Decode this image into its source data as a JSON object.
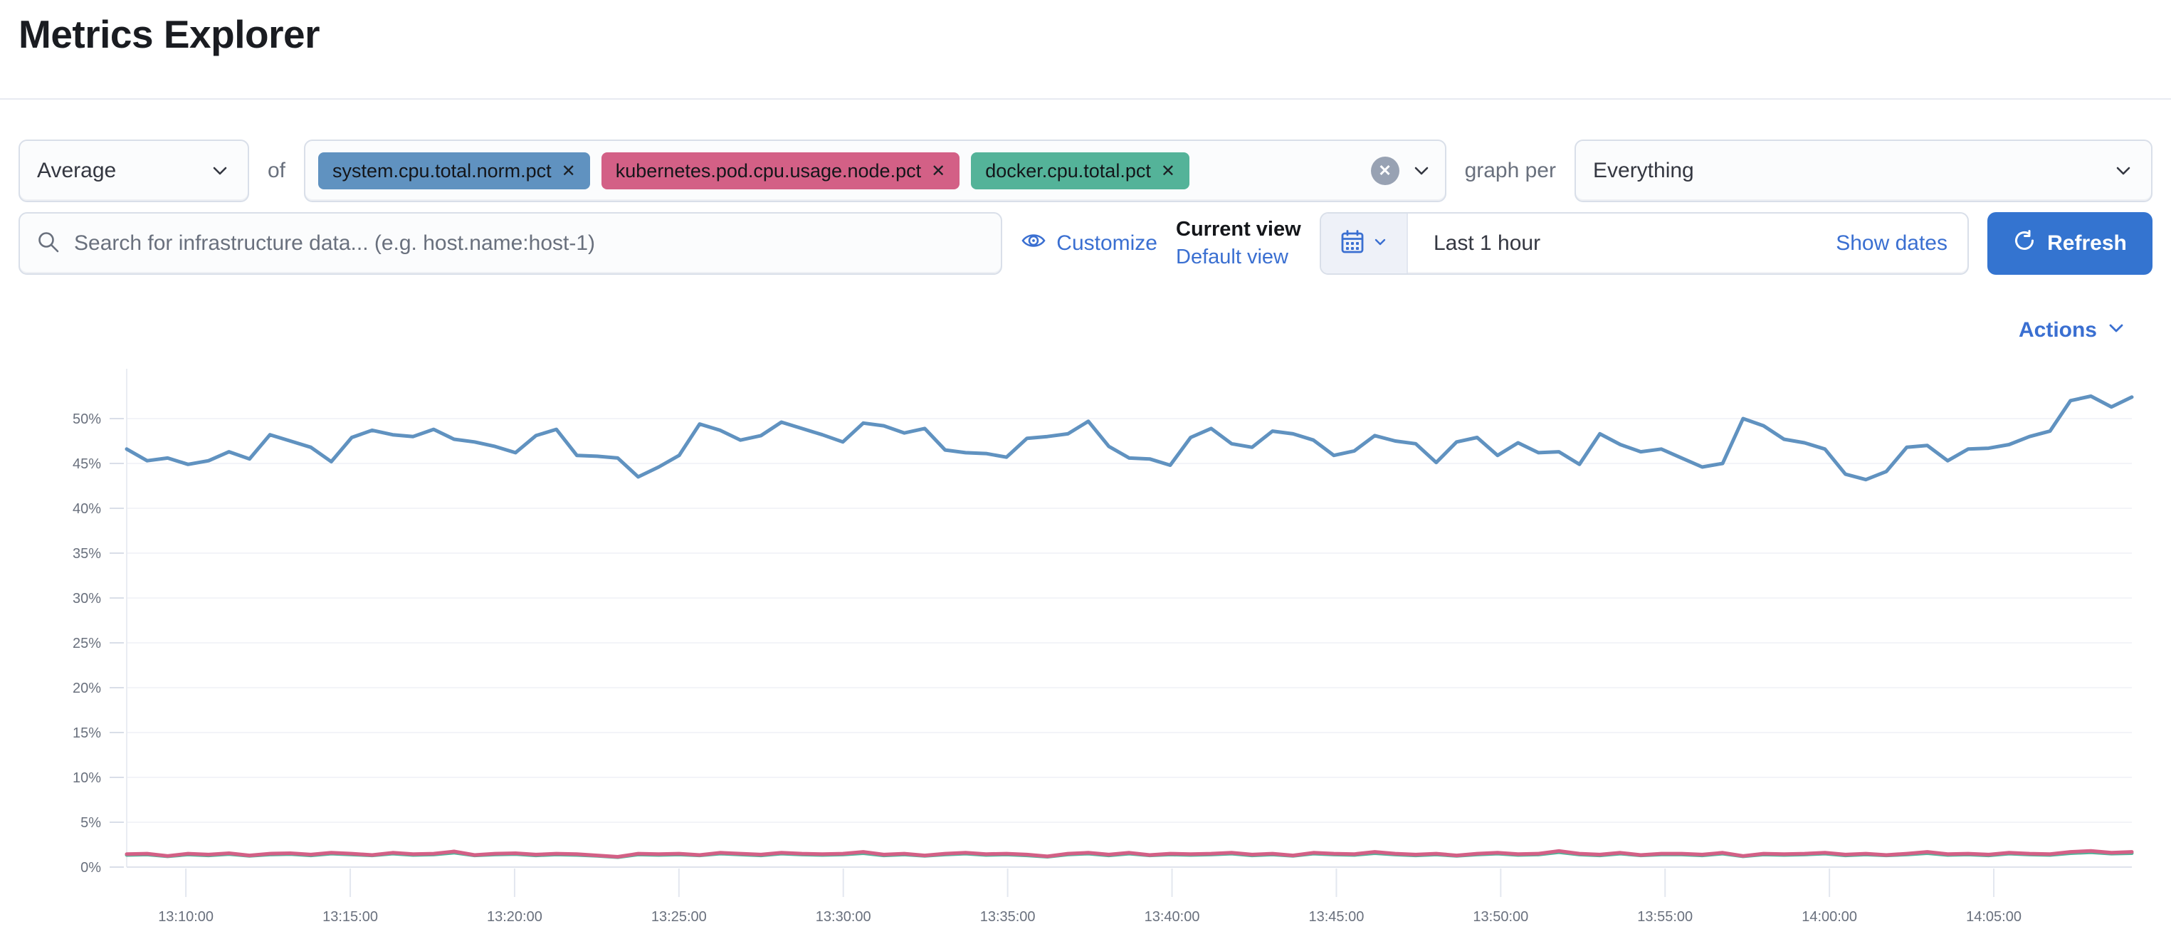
{
  "page": {
    "title": "Metrics Explorer"
  },
  "colors": {
    "accent": "#3a6fd1",
    "button": "#3474d0",
    "divider": "#e7eaf1",
    "series_blue": "#6092C0",
    "series_pink": "#D36086",
    "series_green": "#54B399"
  },
  "toolbar": {
    "aggregation_value": "Average",
    "of_label": "of",
    "metrics": [
      {
        "label": "system.cpu.total.norm.pct",
        "color": "#6092C0"
      },
      {
        "label": "kubernetes.pod.cpu.usage.node.pct",
        "color": "#D36086"
      },
      {
        "label": "docker.cpu.total.pct",
        "color": "#54B399"
      }
    ],
    "remove_icon": "✕",
    "graph_per_label": "graph per",
    "group_by_value": "Everything"
  },
  "search": {
    "placeholder": "Search for infrastructure data... (e.g. host.name:host-1)"
  },
  "view": {
    "customize_label": "Customize",
    "current_view_label": "Current view",
    "default_view_label": "Default view"
  },
  "datepicker": {
    "range_label": "Last 1 hour",
    "show_dates_label": "Show dates",
    "refresh_label": "Refresh"
  },
  "chart": {
    "actions_label": "Actions"
  },
  "icons": [
    "chevron-down-icon",
    "search-icon",
    "eye-icon",
    "calendar-icon",
    "refresh-icon",
    "clear-icon",
    "tag-remove-icon"
  ],
  "chart_data": {
    "type": "line",
    "title": "",
    "xlabel": "",
    "ylabel": "",
    "grid": true,
    "legend": "none",
    "ylim": [
      0,
      53
    ],
    "y_tick_values": [
      50,
      45,
      40,
      35,
      30,
      25,
      20,
      15,
      10,
      5,
      0
    ],
    "y_tick_labels": [
      "50%",
      "45%",
      "40%",
      "35%",
      "30%",
      "25%",
      "20%",
      "15%",
      "10%",
      "5%",
      "0%"
    ],
    "x_tick_minutes": [
      10,
      15,
      20,
      25,
      30,
      35,
      40,
      45,
      50,
      55,
      60,
      65
    ],
    "x_tick_labels": [
      "13:10:00",
      "13:15:00",
      "13:20:00",
      "13:25:00",
      "13:30:00",
      "13:35:00",
      "13:40:00",
      "13:45:00",
      "13:50:00",
      "13:55:00",
      "14:00:00",
      "14:05:00"
    ],
    "x_domain_minutes": [
      8.2,
      69.2
    ],
    "x_domain_note": "minutes after 13:00, points evenly spaced across domain",
    "series": [
      {
        "name": "system.cpu.total.norm.pct",
        "color": "#6092C0",
        "unit": "%",
        "values": [
          46.6,
          45.3,
          45.6,
          44.9,
          45.3,
          46.3,
          45.5,
          48.2,
          47.5,
          46.8,
          45.2,
          47.9,
          48.7,
          48.2,
          48.0,
          48.8,
          47.7,
          47.4,
          46.9,
          46.2,
          48.1,
          48.8,
          45.9,
          45.8,
          45.6,
          43.5,
          44.6,
          45.9,
          49.4,
          48.7,
          47.6,
          48.1,
          49.6,
          48.9,
          48.2,
          47.4,
          49.5,
          49.2,
          48.4,
          48.9,
          46.5,
          46.2,
          46.1,
          45.7,
          47.8,
          48.0,
          48.3,
          49.7,
          46.9,
          45.6,
          45.5,
          44.8,
          47.9,
          48.9,
          47.2,
          46.8,
          48.6,
          48.3,
          47.6,
          45.9,
          46.4,
          48.1,
          47.5,
          47.2,
          45.1,
          47.4,
          47.9,
          45.9,
          47.3,
          46.2,
          46.3,
          44.9,
          48.3,
          47.1,
          46.3,
          46.6,
          45.6,
          44.6,
          45.0,
          50.0,
          49.2,
          47.7,
          47.3,
          46.6,
          43.8,
          43.2,
          44.1,
          46.8,
          47.0,
          45.3,
          46.6,
          46.7,
          47.1,
          48.0,
          48.6,
          52.0,
          52.5,
          51.3,
          52.4
        ]
      },
      {
        "name": "kubernetes.pod.cpu.usage.node.pct",
        "color": "#D36086",
        "unit": "%",
        "values": [
          1.45,
          1.5,
          1.25,
          1.5,
          1.4,
          1.55,
          1.3,
          1.5,
          1.55,
          1.4,
          1.6,
          1.5,
          1.35,
          1.6,
          1.45,
          1.5,
          1.75,
          1.35,
          1.5,
          1.55,
          1.4,
          1.5,
          1.45,
          1.3,
          1.15,
          1.5,
          1.45,
          1.5,
          1.35,
          1.6,
          1.5,
          1.4,
          1.6,
          1.5,
          1.45,
          1.5,
          1.7,
          1.4,
          1.5,
          1.3,
          1.5,
          1.6,
          1.45,
          1.5,
          1.4,
          1.2,
          1.5,
          1.6,
          1.4,
          1.6,
          1.35,
          1.5,
          1.45,
          1.5,
          1.6,
          1.4,
          1.5,
          1.3,
          1.6,
          1.5,
          1.45,
          1.7,
          1.5,
          1.4,
          1.5,
          1.3,
          1.5,
          1.6,
          1.45,
          1.5,
          1.8,
          1.5,
          1.4,
          1.6,
          1.35,
          1.5,
          1.5,
          1.4,
          1.6,
          1.25,
          1.5,
          1.45,
          1.5,
          1.6,
          1.4,
          1.5,
          1.35,
          1.5,
          1.7,
          1.45,
          1.5,
          1.4,
          1.6,
          1.5,
          1.45,
          1.7,
          1.8,
          1.6,
          1.7
        ]
      },
      {
        "name": "docker.cpu.total.pct",
        "color": "#54B399",
        "unit": "%",
        "values": [
          1.35,
          1.4,
          1.2,
          1.4,
          1.3,
          1.45,
          1.25,
          1.4,
          1.45,
          1.3,
          1.5,
          1.4,
          1.3,
          1.5,
          1.35,
          1.4,
          1.6,
          1.3,
          1.4,
          1.45,
          1.3,
          1.4,
          1.35,
          1.25,
          1.1,
          1.4,
          1.35,
          1.4,
          1.3,
          1.5,
          1.4,
          1.3,
          1.5,
          1.4,
          1.35,
          1.4,
          1.55,
          1.3,
          1.4,
          1.25,
          1.4,
          1.5,
          1.35,
          1.4,
          1.3,
          1.15,
          1.4,
          1.5,
          1.3,
          1.5,
          1.3,
          1.4,
          1.35,
          1.4,
          1.5,
          1.3,
          1.4,
          1.25,
          1.5,
          1.4,
          1.35,
          1.55,
          1.4,
          1.3,
          1.4,
          1.25,
          1.4,
          1.5,
          1.35,
          1.4,
          1.65,
          1.4,
          1.3,
          1.5,
          1.3,
          1.4,
          1.4,
          1.3,
          1.5,
          1.2,
          1.4,
          1.35,
          1.4,
          1.5,
          1.3,
          1.4,
          1.3,
          1.4,
          1.55,
          1.35,
          1.4,
          1.3,
          1.5,
          1.4,
          1.35,
          1.55,
          1.65,
          1.5,
          1.55
        ]
      }
    ]
  }
}
